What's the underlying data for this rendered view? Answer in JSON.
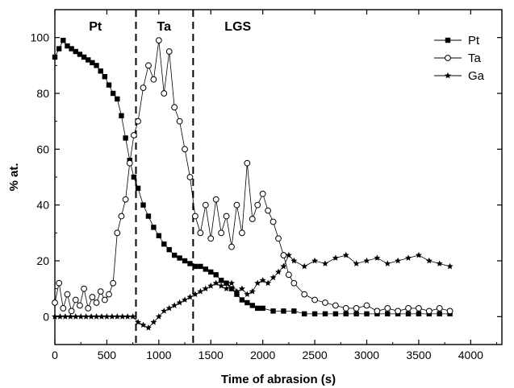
{
  "chart_data": {
    "type": "scatter",
    "title": "",
    "xlabel": "Time of abrasion (s)",
    "ylabel": "% at.",
    "xlim": [
      0,
      4300
    ],
    "ylim": [
      -10,
      110
    ],
    "x_ticks": [
      0,
      500,
      1000,
      1500,
      2000,
      2500,
      3000,
      3500,
      4000
    ],
    "y_ticks": [
      0,
      20,
      40,
      60,
      80,
      100
    ],
    "grid": false,
    "legend_position": "top-right",
    "boundaries": [
      780,
      1330
    ],
    "regions": [
      {
        "label": "Pt",
        "x": 390
      },
      {
        "label": "Ta",
        "x": 1050
      },
      {
        "label": "LGS",
        "x": 1760
      }
    ],
    "series": [
      {
        "name": "Pt",
        "marker": "square",
        "color": "#000000",
        "x": [
          0,
          40,
          80,
          120,
          160,
          200,
          240,
          280,
          320,
          360,
          400,
          440,
          480,
          520,
          560,
          600,
          640,
          680,
          720,
          760,
          800,
          850,
          900,
          950,
          1000,
          1050,
          1100,
          1150,
          1200,
          1250,
          1300,
          1350,
          1400,
          1450,
          1500,
          1550,
          1600,
          1650,
          1700,
          1750,
          1800,
          1850,
          1900,
          1950,
          2000,
          2100,
          2200,
          2300,
          2400,
          2500,
          2600,
          2700,
          2800,
          2900,
          3000,
          3100,
          3200,
          3300,
          3400,
          3500,
          3600,
          3700,
          3800
        ],
        "y": [
          93,
          96,
          99,
          97,
          96,
          95,
          94,
          93,
          92,
          91,
          90,
          88,
          86,
          83,
          80,
          78,
          72,
          64,
          56,
          50,
          46,
          40,
          36,
          32,
          29,
          26,
          24,
          22,
          21,
          20,
          19,
          18,
          18,
          17,
          16,
          15,
          13,
          12,
          10,
          8,
          6,
          5,
          4,
          3,
          3,
          2,
          2,
          2,
          1,
          1,
          1,
          1,
          1,
          1,
          1,
          1,
          1,
          1,
          1,
          1,
          1,
          1,
          1
        ]
      },
      {
        "name": "Ta",
        "marker": "circle",
        "color": "#000000",
        "x": [
          0,
          40,
          80,
          120,
          160,
          200,
          240,
          280,
          320,
          360,
          400,
          440,
          480,
          520,
          560,
          600,
          640,
          680,
          720,
          760,
          800,
          850,
          900,
          950,
          1000,
          1050,
          1100,
          1150,
          1200,
          1250,
          1300,
          1350,
          1400,
          1450,
          1500,
          1550,
          1600,
          1650,
          1700,
          1750,
          1800,
          1850,
          1900,
          1950,
          2000,
          2050,
          2100,
          2150,
          2200,
          2250,
          2300,
          2400,
          2500,
          2600,
          2700,
          2800,
          2900,
          3000,
          3100,
          3200,
          3300,
          3400,
          3500,
          3600,
          3700,
          3800
        ],
        "y": [
          5,
          12,
          3,
          8,
          2,
          6,
          4,
          10,
          3,
          7,
          5,
          9,
          6,
          8,
          12,
          30,
          36,
          42,
          55,
          65,
          70,
          82,
          90,
          85,
          99,
          80,
          95,
          75,
          70,
          60,
          50,
          36,
          30,
          40,
          28,
          42,
          30,
          36,
          25,
          40,
          30,
          55,
          35,
          40,
          44,
          38,
          34,
          28,
          22,
          15,
          12,
          8,
          6,
          5,
          4,
          3,
          3,
          4,
          2,
          3,
          2,
          3,
          3,
          2,
          3,
          2
        ]
      },
      {
        "name": "Ga",
        "marker": "star",
        "color": "#000000",
        "x": [
          0,
          50,
          100,
          150,
          200,
          250,
          300,
          350,
          400,
          450,
          500,
          550,
          600,
          650,
          700,
          750,
          800,
          850,
          900,
          950,
          1000,
          1050,
          1100,
          1150,
          1200,
          1250,
          1300,
          1350,
          1400,
          1450,
          1500,
          1550,
          1600,
          1650,
          1700,
          1750,
          1800,
          1850,
          1900,
          1950,
          2000,
          2050,
          2100,
          2150,
          2200,
          2250,
          2300,
          2400,
          2500,
          2600,
          2700,
          2800,
          2900,
          3000,
          3100,
          3200,
          3300,
          3400,
          3500,
          3600,
          3700,
          3800
        ],
        "y": [
          0,
          0,
          0,
          0,
          0,
          0,
          0,
          0,
          0,
          0,
          0,
          0,
          0,
          0,
          0,
          0,
          -2,
          -3,
          -4,
          -2,
          0,
          2,
          3,
          4,
          5,
          6,
          7,
          8,
          9,
          10,
          11,
          12,
          11,
          10,
          12,
          9,
          10,
          8,
          9,
          12,
          13,
          12,
          14,
          16,
          18,
          22,
          20,
          18,
          20,
          19,
          21,
          22,
          19,
          20,
          21,
          19,
          20,
          21,
          22,
          20,
          19,
          18
        ]
      }
    ]
  },
  "legend": [
    {
      "label": "Pt",
      "icon": "filled-square-icon"
    },
    {
      "label": "Ta",
      "icon": "open-circle-icon"
    },
    {
      "label": "Ga",
      "icon": "star-icon"
    }
  ]
}
